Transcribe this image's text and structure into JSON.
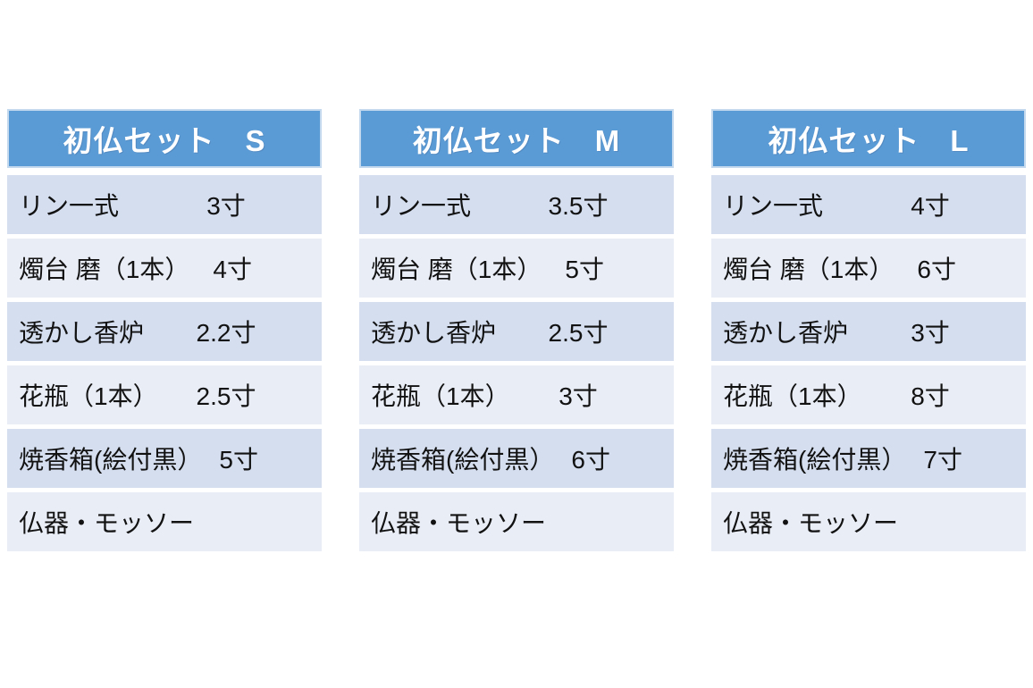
{
  "page": {
    "background": "#FFFFFF"
  },
  "colors": {
    "header_bg": "#5B9BD5",
    "header_border": "#C5D9EE",
    "header_text": "#FFFFFF",
    "row_band_dark": "#D4DEEF",
    "row_band_light": "#E9EDF6",
    "row_text": "#121212",
    "row_gap": "#FFFFFF"
  },
  "tables": [
    {
      "title": "初仏セット　S",
      "rows": [
        {
          "item": "リン一式",
          "size": "3寸"
        },
        {
          "item": "燭台 磨（1本）",
          "size": "4寸"
        },
        {
          "item": "透かし香炉",
          "size": "2.2寸"
        },
        {
          "item": "花瓶（1本）",
          "size": "2.5寸"
        },
        {
          "item": "焼香箱(絵付黒）",
          "size": "5寸"
        },
        {
          "item": "仏器・モッソー",
          "size": ""
        }
      ]
    },
    {
      "title": "初仏セット　M",
      "rows": [
        {
          "item": "リン一式",
          "size": "3.5寸"
        },
        {
          "item": "燭台 磨（1本）",
          "size": "5寸"
        },
        {
          "item": "透かし香炉",
          "size": "2.5寸"
        },
        {
          "item": "花瓶（1本）",
          "size": "3寸"
        },
        {
          "item": "焼香箱(絵付黒）",
          "size": "6寸"
        },
        {
          "item": "仏器・モッソー",
          "size": ""
        }
      ]
    },
    {
      "title": "初仏セット　L",
      "rows": [
        {
          "item": "リン一式",
          "size": "4寸"
        },
        {
          "item": "燭台 磨（1本）",
          "size": "6寸"
        },
        {
          "item": "透かし香炉",
          "size": "3寸"
        },
        {
          "item": "花瓶（1本）",
          "size": "8寸"
        },
        {
          "item": "焼香箱(絵付黒）",
          "size": "7寸"
        },
        {
          "item": "仏器・モッソー",
          "size": ""
        }
      ]
    }
  ]
}
